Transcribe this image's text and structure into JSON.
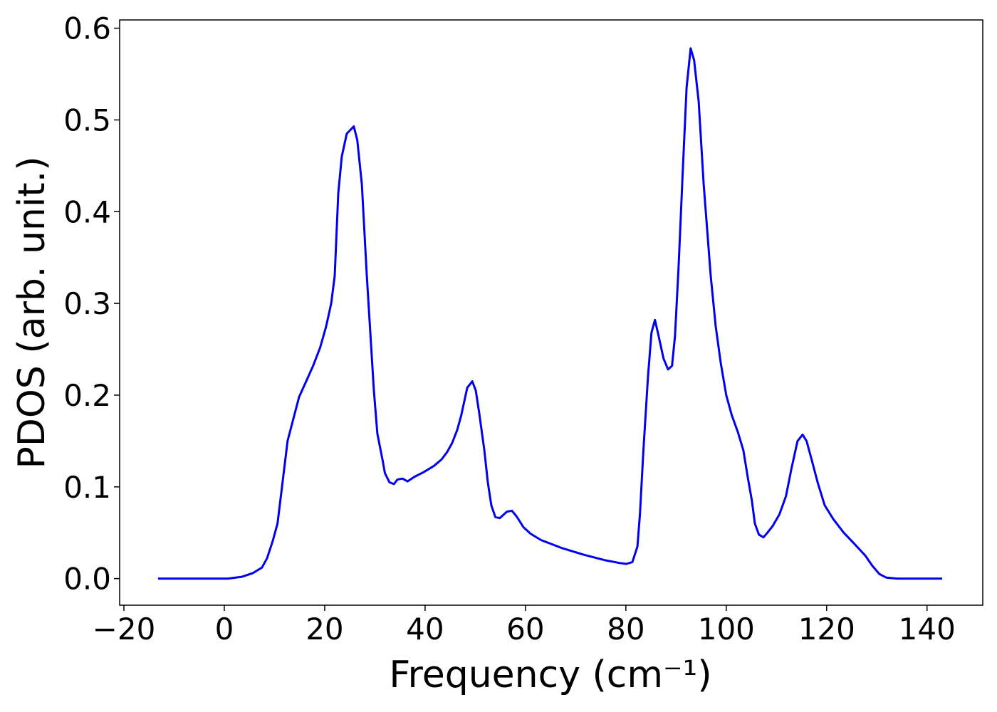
{
  "chart_data": {
    "type": "line",
    "x_label": "Frequency (cm⁻¹)",
    "y_label": "PDOS (arb. unit.)",
    "xlim": [
      -20.85,
      151.1
    ],
    "ylim": [
      -0.029,
      0.609
    ],
    "xticks": [
      {
        "value": -20,
        "label": "−20"
      },
      0,
      20,
      40,
      60,
      80,
      100,
      120,
      140
    ],
    "yticks": [
      {
        "value": 0,
        "label": "0.0"
      },
      0.1,
      0.2,
      0.3,
      0.4,
      0.5,
      0.6
    ],
    "series": [
      {
        "name": "PDOS",
        "color": "#0000ee",
        "x": [
          -13.2,
          0.7,
          3.5,
          5.7,
          7.5,
          8.5,
          9.6,
          10.6,
          11.5,
          12.6,
          13.8,
          14.9,
          16.3,
          17.7,
          19.1,
          20.3,
          21.3,
          22,
          22.7,
          23.4,
          24.4,
          25.8,
          26.5,
          27.4,
          28.4,
          29.8,
          30.5,
          31.5,
          32,
          32.9,
          33.8,
          34.5,
          35.5,
          36.5,
          37.9,
          39.7,
          41.8,
          43.3,
          44.4,
          45.4,
          46.4,
          47.2,
          48.4,
          49.4,
          50.1,
          50.8,
          51.8,
          52.5,
          53.2,
          54,
          54.9,
          56.3,
          57.3,
          58.2,
          59.6,
          61,
          63.1,
          67.4,
          71.6,
          75.9,
          78.7,
          80.1,
          81.3,
          82.3,
          82.8,
          83.5,
          84.4,
          85.1,
          85.8,
          86.5,
          87.5,
          88.4,
          89.2,
          89.8,
          90.5,
          91.3,
          92.1,
          92.9,
          93.6,
          94.5,
          95.5,
          96.9,
          97.9,
          98.9,
          100,
          101.1,
          102.3,
          103.4,
          104.3,
          105.1,
          105.7,
          106.5,
          107.4,
          108.2,
          109.2,
          110.6,
          111.9,
          113,
          114.2,
          115.2,
          116,
          117,
          118.2,
          119.6,
          121.3,
          123.4,
          125.5,
          127.7,
          129.1,
          130.5,
          131.9,
          134,
          143
        ],
        "values": [
          0,
          0,
          0.002,
          0.006,
          0.012,
          0.022,
          0.04,
          0.06,
          0.1,
          0.15,
          0.175,
          0.198,
          0.215,
          0.232,
          0.252,
          0.275,
          0.3,
          0.33,
          0.42,
          0.46,
          0.485,
          0.493,
          0.478,
          0.43,
          0.33,
          0.205,
          0.158,
          0.13,
          0.115,
          0.105,
          0.103,
          0.108,
          0.109,
          0.106,
          0.111,
          0.116,
          0.123,
          0.13,
          0.138,
          0.148,
          0.162,
          0.178,
          0.208,
          0.215,
          0.205,
          0.18,
          0.14,
          0.105,
          0.08,
          0.067,
          0.066,
          0.073,
          0.074,
          0.068,
          0.056,
          0.049,
          0.042,
          0.033,
          0.026,
          0.02,
          0.017,
          0.016,
          0.018,
          0.035,
          0.07,
          0.14,
          0.22,
          0.268,
          0.282,
          0.265,
          0.24,
          0.228,
          0.232,
          0.265,
          0.34,
          0.44,
          0.535,
          0.578,
          0.565,
          0.52,
          0.43,
          0.33,
          0.275,
          0.235,
          0.2,
          0.178,
          0.16,
          0.14,
          0.11,
          0.085,
          0.06,
          0.048,
          0.045,
          0.05,
          0.057,
          0.07,
          0.09,
          0.12,
          0.15,
          0.157,
          0.15,
          0.13,
          0.105,
          0.08,
          0.065,
          0.05,
          0.038,
          0.025,
          0.014,
          0.005,
          0.001,
          0,
          0
        ]
      }
    ]
  }
}
